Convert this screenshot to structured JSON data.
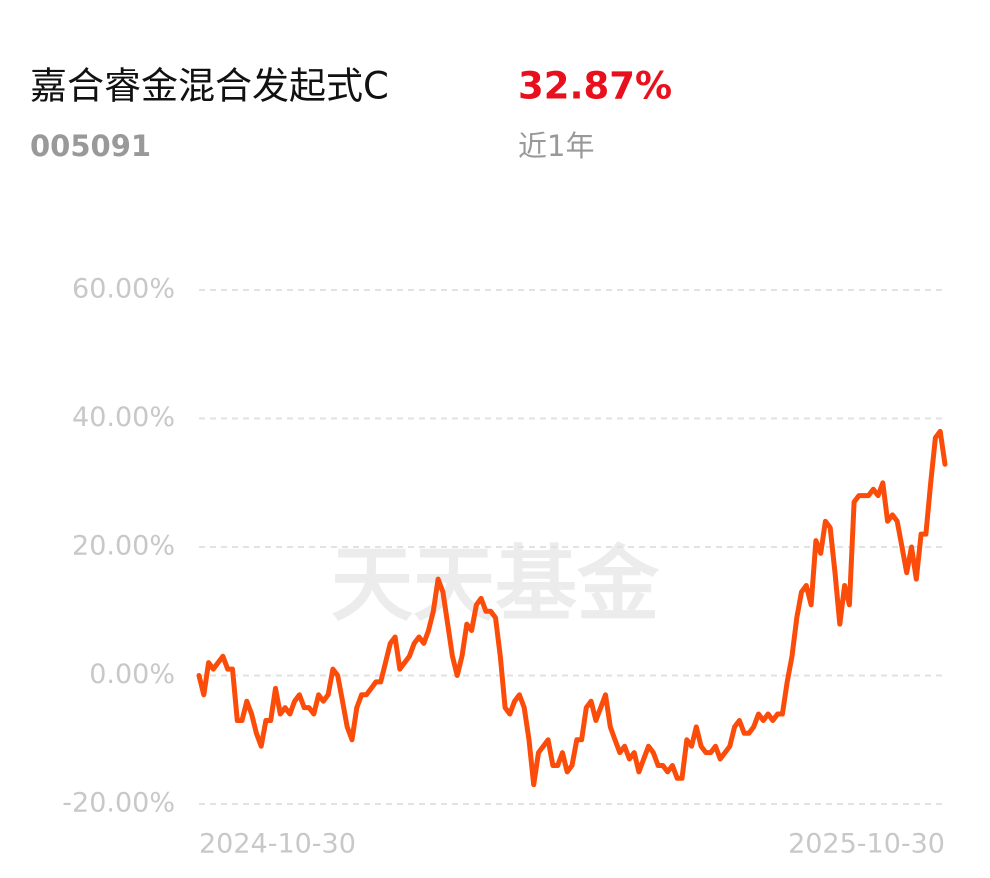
{
  "header": {
    "title": "嘉合睿金混合发起式C",
    "return": "32.87%",
    "code": "005091",
    "period": "近1年"
  },
  "chart_data": {
    "type": "line",
    "watermark": "天天基金",
    "categories": [
      "2024-10-30",
      null,
      null,
      null,
      null,
      null,
      null,
      null,
      null,
      null,
      null,
      null,
      null,
      null,
      null,
      null,
      null,
      null,
      null,
      null,
      null,
      null,
      null,
      null,
      null,
      null,
      null,
      null,
      null,
      null,
      null,
      null,
      null,
      null,
      null,
      null,
      null,
      null,
      null,
      null,
      null,
      null,
      null,
      null,
      null,
      null,
      null,
      null,
      null,
      null,
      null,
      null,
      null,
      null,
      null,
      null,
      null,
      null,
      null,
      null,
      null,
      null,
      null,
      null,
      null,
      null,
      null,
      null,
      null,
      null,
      null,
      null,
      null,
      null,
      null,
      null,
      null,
      null,
      null,
      null,
      null,
      null,
      null,
      null,
      null,
      null,
      null,
      null,
      null,
      null,
      null,
      null,
      null,
      null,
      null,
      null,
      null,
      null,
      null,
      null,
      null,
      null,
      null,
      null,
      null,
      null,
      null,
      null,
      null,
      null,
      null,
      null,
      null,
      null,
      null,
      null,
      null,
      null,
      null,
      null,
      null,
      null,
      null,
      null,
      null,
      null,
      null,
      null,
      null,
      null,
      null,
      null,
      null,
      null,
      null,
      null,
      null,
      null,
      null,
      null,
      null,
      null,
      null,
      null,
      null,
      null,
      null,
      null,
      null,
      null,
      null,
      null,
      null,
      null,
      null,
      null,
      "2025-10-30"
    ],
    "series": [
      {
        "color": "#fb4c0a",
        "values": [
          0,
          -3,
          2,
          1,
          2,
          3,
          1,
          1,
          -7,
          -7,
          -4,
          -6,
          -9,
          -11,
          -7,
          -7,
          -2,
          -6,
          -5,
          -6,
          -4,
          -3,
          -5,
          -5,
          -6,
          -3,
          -4,
          -3,
          1,
          0,
          -4,
          -8,
          -10,
          -5,
          -3,
          -3,
          -2,
          -1,
          -1,
          2,
          5,
          6,
          1,
          2,
          3,
          5,
          6,
          5,
          7,
          10,
          15,
          13,
          8,
          3,
          0,
          3,
          8,
          7,
          11,
          12,
          10,
          10,
          9,
          3,
          -5,
          -6,
          -4,
          -3,
          -5,
          -10,
          -17,
          -12,
          -11,
          -10,
          -14,
          -14,
          -12,
          -15,
          -14,
          -10,
          -10,
          -5,
          -4,
          -7,
          -5,
          -3,
          -8,
          -10,
          -12,
          -11,
          -13,
          -12,
          -15,
          -13,
          -11,
          -12,
          -14,
          -14,
          -15,
          -14,
          -16,
          -16,
          -10,
          -11,
          -8,
          -11,
          -12,
          -12,
          -11,
          -13,
          -12,
          -11,
          -8,
          -7,
          -9,
          -9,
          -8,
          -6,
          -7,
          -6,
          -7,
          -6,
          -6,
          -1,
          3,
          9,
          13,
          14,
          11,
          21,
          19,
          24,
          23,
          16,
          8,
          14,
          11,
          27,
          28,
          28,
          28,
          29,
          28,
          30,
          24,
          25,
          24,
          20,
          16,
          20,
          15,
          22,
          22,
          30,
          37,
          38,
          32.87
        ]
      }
    ],
    "ylim": [
      -20,
      60
    ],
    "yticks": [
      {
        "value": -20,
        "label": "-20.00%"
      },
      {
        "value": 0,
        "label": "0.00%"
      },
      {
        "value": 20,
        "label": "20.00%"
      },
      {
        "value": 40,
        "label": "40.00%"
      },
      {
        "value": 60,
        "label": "60.00%"
      }
    ],
    "grid": true
  }
}
